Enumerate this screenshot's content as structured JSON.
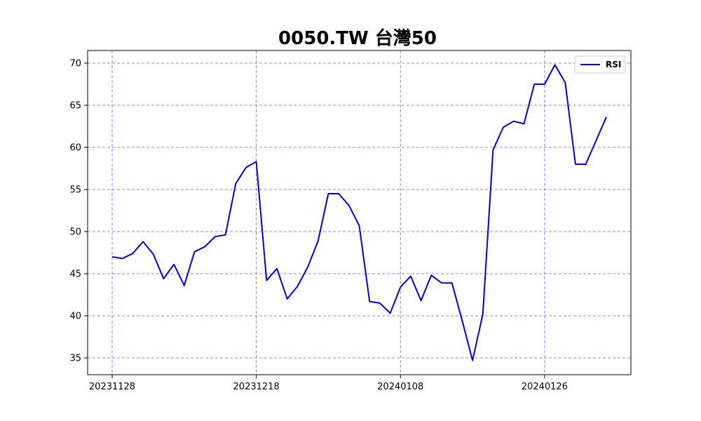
{
  "chart_data": {
    "type": "line",
    "title": "0050.TW 台灣50",
    "xlabel": "",
    "ylabel": "",
    "x_tick_labels": [
      "20231128",
      "20231218",
      "20240108",
      "20240126"
    ],
    "x_tick_indices": [
      0,
      14,
      28,
      42
    ],
    "ylim": [
      33,
      71.5
    ],
    "yticks": [
      35,
      40,
      45,
      50,
      55,
      60,
      65,
      70
    ],
    "grid": true,
    "legend_position": "top-right",
    "series": [
      {
        "name": "RSI",
        "color": "#0000dd",
        "values": [
          47.0,
          46.8,
          47.4,
          48.8,
          47.3,
          44.4,
          46.1,
          43.6,
          47.6,
          48.2,
          49.4,
          49.6,
          55.7,
          57.6,
          58.3,
          44.2,
          45.6,
          42.0,
          43.5,
          45.8,
          48.9,
          54.5,
          54.5,
          53.1,
          50.7,
          41.7,
          41.5,
          40.3,
          43.4,
          44.7,
          41.8,
          44.8,
          43.9,
          43.9,
          39.4,
          34.7,
          40.2,
          59.7,
          62.4,
          63.1,
          62.8,
          67.5,
          67.5,
          69.8,
          67.7,
          58.0,
          58.0,
          60.8,
          63.6
        ]
      }
    ]
  }
}
